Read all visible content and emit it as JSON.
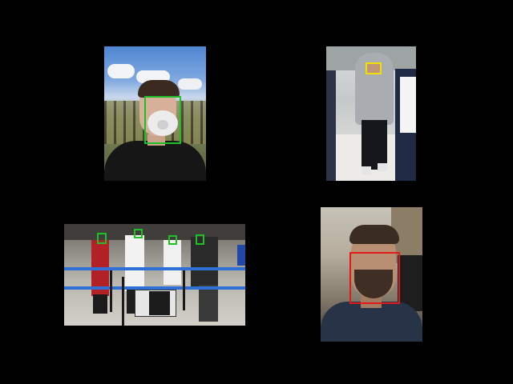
{
  "panels": [
    {
      "id": "panel-1",
      "description_icon": "face-mask-selfie",
      "boxes": [
        {
          "color": "#1fbf2a",
          "label": ""
        }
      ]
    },
    {
      "id": "panel-2",
      "description_icon": "hooded-person-corridor",
      "boxes": [
        {
          "color": "#f0e000",
          "label": ""
        }
      ]
    },
    {
      "id": "panel-3",
      "description_icon": "airport-staff-group",
      "boxes": [
        {
          "color": "#1fbf2a",
          "label": ""
        },
        {
          "color": "#1fbf2a",
          "label": ""
        },
        {
          "color": "#1fbf2a",
          "label": ""
        },
        {
          "color": "#1fbf2a",
          "label": ""
        }
      ]
    },
    {
      "id": "panel-4",
      "description_icon": "bearded-man-selfie",
      "boxes": [
        {
          "color": "#e01919",
          "label": ""
        }
      ]
    }
  ],
  "colors": {
    "background": "#000000",
    "mask": "#1fbf2a",
    "partial": "#f0e000",
    "no_mask": "#e01919"
  }
}
